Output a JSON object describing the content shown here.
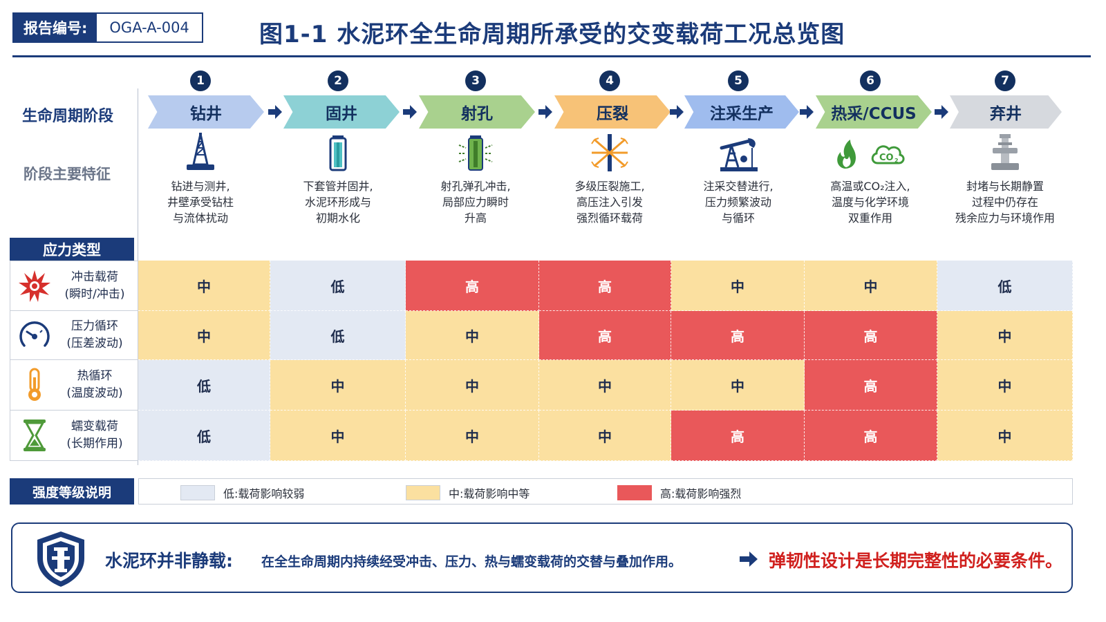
{
  "header": {
    "report_label": "报告编号:",
    "report_number": "OGA-A-004",
    "title": "图1-1  水泥环全生命周期所承受的交变载荷工况总览图"
  },
  "labels": {
    "lifecycle_stage": "生命周期阶段",
    "stage_features": "阶段主要特征",
    "stress_type": "应力类型",
    "legend_title": "强度等级说明"
  },
  "colors": {
    "navy": "#1b3b7a",
    "low": "#e3e9f3",
    "mid": "#fbe0a0",
    "high": "#e9585a",
    "emphasis_red": "#d0201e"
  },
  "stages": [
    {
      "num": "1",
      "name": "钻井",
      "color": "#b7cbee",
      "icon": "drilling-rig-icon",
      "desc": [
        "钻进与测井,",
        "井壁承受钻柱",
        "与流体扰动"
      ]
    },
    {
      "num": "2",
      "name": "固井",
      "color": "#8dd1d5",
      "icon": "cement-casing-icon",
      "desc": [
        "下套管并固井,",
        "水泥环形成与",
        "初期水化"
      ]
    },
    {
      "num": "3",
      "name": "射孔",
      "color": "#a9d18e",
      "icon": "perforation-gun-icon",
      "desc": [
        "射孔弹孔冲击,",
        "局部应力瞬时",
        "升高"
      ]
    },
    {
      "num": "4",
      "name": "压裂",
      "color": "#f7c277",
      "icon": "fracture-burst-icon",
      "desc": [
        "多级压裂施工,",
        "高压注入引发",
        "强烈循环载荷"
      ]
    },
    {
      "num": "5",
      "name": "注采生产",
      "color": "#9fbcee",
      "icon": "pumpjack-icon",
      "desc": [
        "注采交替进行,",
        "压力频繁波动",
        "与循环"
      ]
    },
    {
      "num": "6",
      "name": "热采/CCUS",
      "color": "#a9d18e",
      "icon": "flame-co2-icon",
      "desc": [
        "高温或CO₂注入,",
        "温度与化学环境",
        "双重作用"
      ]
    },
    {
      "num": "7",
      "name": "弃井",
      "color": "#d6d9de",
      "icon": "wellhead-plug-icon",
      "desc": [
        "封堵与长期静置",
        "过程中仍存在",
        "残余应力与环境作用"
      ]
    }
  ],
  "stress_rows": [
    {
      "icon": "impact-burst-icon",
      "name": "冲击载荷",
      "sub": "(瞬时/冲击)",
      "levels": [
        "mid",
        "low",
        "high",
        "high",
        "mid",
        "mid",
        "low"
      ]
    },
    {
      "icon": "pressure-gauge-icon",
      "name": "压力循环",
      "sub": "(压差波动)",
      "levels": [
        "mid",
        "low",
        "mid",
        "high",
        "high",
        "high",
        "mid"
      ]
    },
    {
      "icon": "thermometer-icon",
      "name": "热循环",
      "sub": "(温度波动)",
      "levels": [
        "low",
        "mid",
        "mid",
        "mid",
        "mid",
        "high",
        "mid"
      ]
    },
    {
      "icon": "hourglass-icon",
      "name": "蠕变载荷",
      "sub": "(长期作用)",
      "levels": [
        "low",
        "mid",
        "mid",
        "mid",
        "high",
        "high",
        "mid"
      ]
    }
  ],
  "level_text": {
    "low": "低",
    "mid": "中",
    "high": "高"
  },
  "legend": [
    {
      "level": "low",
      "text": "低:载荷影响较弱"
    },
    {
      "level": "mid",
      "text": "中:载荷影响中等"
    },
    {
      "level": "high",
      "text": "高:载荷影响强烈"
    }
  ],
  "conclusion": {
    "icon": "shield-wellhead-icon",
    "main": "水泥环并非静载:",
    "sub": "在全生命周期内持续经受冲击、压力、热与蠕变载荷的交替与叠加作用。",
    "emphasis": "弹韧性设计是长期完整性的必要条件。"
  }
}
